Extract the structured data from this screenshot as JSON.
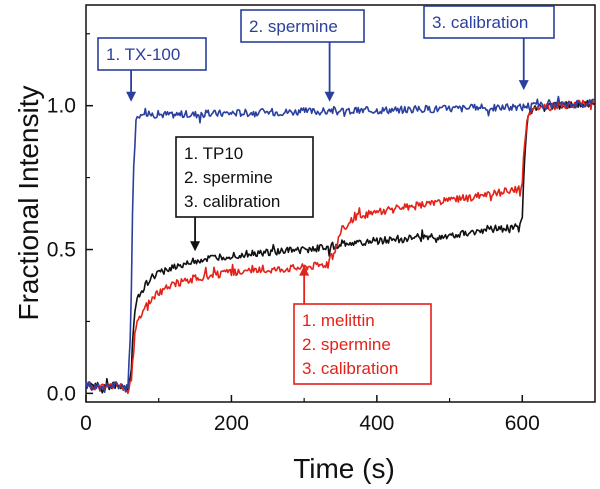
{
  "chart_data": {
    "type": "line",
    "title": "",
    "xlabel": "Time (s)",
    "ylabel": "Fractional Intensity",
    "xlim": [
      0,
      700
    ],
    "ylim": [
      -0.03,
      1.35
    ],
    "xticks": [
      0,
      200,
      400,
      600
    ],
    "xtick_labels": [
      "0",
      "200",
      "400",
      "600"
    ],
    "yticks": [
      0.0,
      0.5,
      1.0
    ],
    "ytick_labels": [
      "0.0",
      "0.5",
      "1.0"
    ],
    "grid": false,
    "legend": "none",
    "series": [
      {
        "name": "TX-100",
        "color": "#2a3f9e",
        "x": [
          0,
          20,
          40,
          58,
          62,
          64,
          66,
          68,
          70,
          72,
          76,
          80,
          90,
          100,
          150,
          200,
          300,
          350,
          400,
          500,
          600,
          605,
          650,
          700
        ],
        "y": [
          0.03,
          0.02,
          0.03,
          0.02,
          0.3,
          0.62,
          0.84,
          0.93,
          0.95,
          0.97,
          0.97,
          0.98,
          0.97,
          0.97,
          0.97,
          0.975,
          0.98,
          0.98,
          0.985,
          0.99,
          0.995,
          1.0,
          1.0,
          1.01
        ]
      },
      {
        "name": "TP10",
        "color": "#111111",
        "x": [
          0,
          20,
          40,
          58,
          62,
          64,
          66,
          68,
          70,
          75,
          80,
          90,
          100,
          120,
          150,
          200,
          250,
          300,
          340,
          350,
          360,
          400,
          450,
          500,
          550,
          598,
          600,
          603,
          606,
          610,
          620,
          650,
          700
        ],
        "y": [
          0.03,
          0.02,
          0.03,
          0.02,
          0.05,
          0.18,
          0.26,
          0.31,
          0.33,
          0.35,
          0.37,
          0.4,
          0.42,
          0.44,
          0.46,
          0.48,
          0.49,
          0.5,
          0.51,
          0.52,
          0.52,
          0.53,
          0.54,
          0.55,
          0.57,
          0.58,
          0.62,
          0.8,
          0.93,
          0.98,
          0.99,
          1.0,
          1.01
        ]
      },
      {
        "name": "melittin",
        "color": "#e32219",
        "x": [
          0,
          20,
          40,
          58,
          62,
          64,
          66,
          68,
          70,
          75,
          80,
          90,
          100,
          120,
          150,
          200,
          250,
          300,
          330,
          340,
          345,
          350,
          360,
          370,
          400,
          450,
          500,
          550,
          598,
          600,
          603,
          606,
          610,
          620,
          650,
          700
        ],
        "y": [
          0.03,
          0.02,
          0.03,
          0.02,
          0.04,
          0.12,
          0.18,
          0.22,
          0.24,
          0.27,
          0.3,
          0.33,
          0.35,
          0.38,
          0.4,
          0.42,
          0.43,
          0.44,
          0.45,
          0.48,
          0.52,
          0.56,
          0.59,
          0.61,
          0.63,
          0.65,
          0.67,
          0.69,
          0.71,
          0.74,
          0.86,
          0.95,
          0.98,
          0.99,
          1.0,
          1.01
        ]
      }
    ],
    "annotations": [
      {
        "lines": [
          "1. TX-100"
        ],
        "color": "#2a3f9e",
        "arrow_to": [
          62,
          1.0
        ]
      },
      {
        "lines": [
          "2. spermine"
        ],
        "color": "#2a3f9e",
        "arrow_to": [
          335,
          1.0
        ]
      },
      {
        "lines": [
          "3. calibration"
        ],
        "color": "#2a3f9e",
        "arrow_to": [
          602,
          1.04
        ]
      },
      {
        "lines": [
          "1. TP10",
          "2. spermine",
          "3. calibration"
        ],
        "color": "#111111",
        "arrow_to": [
          150,
          0.48
        ]
      },
      {
        "lines": [
          "1. melittin",
          "2. spermine",
          "3. calibration"
        ],
        "color": "#e32219",
        "arrow_to": [
          300,
          0.43
        ]
      }
    ]
  }
}
